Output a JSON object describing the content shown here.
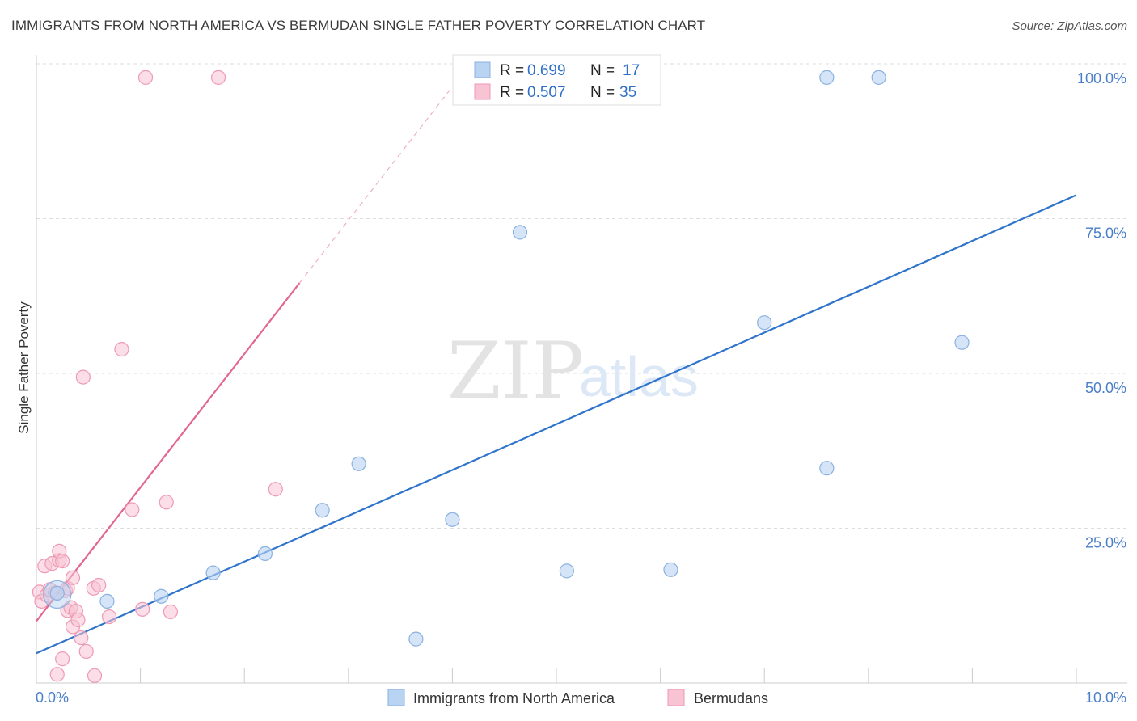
{
  "header": {
    "title": "IMMIGRANTS FROM NORTH AMERICA VS BERMUDAN SINGLE FATHER POVERTY CORRELATION CHART",
    "source": "Source: ZipAtlas.com"
  },
  "watermark": {
    "zip": "ZIP",
    "atlas": "atlas"
  },
  "colors": {
    "blue_fill": "#b9d3f2",
    "blue_stroke": "#8ab1e2",
    "blue_line": "#2f74cc",
    "pink_fill": "#f8c3d3",
    "pink_stroke": "#ee9ab5",
    "pink_line": "#e2668f",
    "grid": "#dddddd",
    "axis_label": "#4a7fc9"
  },
  "chart_data": {
    "type": "scatter",
    "title": "IMMIGRANTS FROM NORTH AMERICA VS BERMUDAN SINGLE FATHER POVERTY CORRELATION CHART",
    "xlabel": "",
    "ylabel": "Single Father Poverty",
    "xlim": [
      0,
      10
    ],
    "ylim": [
      0,
      100
    ],
    "x_tick_labels": [
      "0.0%",
      "10.0%"
    ],
    "y_ticks": [
      25,
      50,
      75,
      100
    ],
    "y_tick_labels": [
      "25.0%",
      "50.0%",
      "75.0%",
      "100.0%"
    ],
    "grid": true,
    "legend_position": "top-center",
    "series": [
      {
        "name": "Immigrants from North America",
        "color": "blue",
        "R": "0.699",
        "N": "17",
        "points": [
          [
            0.2,
            14.5
          ],
          [
            0.68,
            13.2
          ],
          [
            1.2,
            14.0
          ],
          [
            1.7,
            17.8
          ],
          [
            2.2,
            20.9
          ],
          [
            2.75,
            27.9
          ],
          [
            3.1,
            35.4
          ],
          [
            3.65,
            7.1
          ],
          [
            4.0,
            26.4
          ],
          [
            4.65,
            72.8
          ],
          [
            5.1,
            18.1
          ],
          [
            6.1,
            18.3
          ],
          [
            7.0,
            58.2
          ],
          [
            7.6,
            34.7
          ],
          [
            7.6,
            97.8
          ],
          [
            8.1,
            97.8
          ],
          [
            8.9,
            55.0
          ]
        ],
        "trend": {
          "x": [
            0,
            10
          ],
          "y": [
            4.8,
            78.8
          ]
        }
      },
      {
        "name": "Bermudans",
        "color": "pink",
        "R": "0.507",
        "N": "35",
        "points": [
          [
            0.03,
            14.7
          ],
          [
            0.05,
            13.2
          ],
          [
            0.08,
            18.9
          ],
          [
            0.1,
            14.2
          ],
          [
            0.13,
            15.1
          ],
          [
            0.15,
            19.3
          ],
          [
            0.18,
            14.6
          ],
          [
            0.2,
            1.4
          ],
          [
            0.22,
            19.8
          ],
          [
            0.22,
            21.3
          ],
          [
            0.25,
            3.9
          ],
          [
            0.25,
            19.7
          ],
          [
            0.28,
            14.9
          ],
          [
            0.3,
            11.7
          ],
          [
            0.3,
            15.3
          ],
          [
            0.33,
            12.2
          ],
          [
            0.35,
            17.0
          ],
          [
            0.35,
            9.1
          ],
          [
            0.38,
            11.6
          ],
          [
            0.4,
            10.2
          ],
          [
            0.43,
            7.3
          ],
          [
            0.45,
            49.4
          ],
          [
            0.48,
            5.1
          ],
          [
            0.55,
            15.3
          ],
          [
            0.56,
            1.2
          ],
          [
            0.6,
            15.8
          ],
          [
            0.7,
            10.7
          ],
          [
            0.82,
            53.9
          ],
          [
            0.92,
            28.0
          ],
          [
            1.02,
            11.9
          ],
          [
            1.05,
            97.8
          ],
          [
            1.25,
            29.2
          ],
          [
            1.29,
            11.5
          ],
          [
            1.75,
            97.8
          ],
          [
            2.3,
            31.3
          ]
        ],
        "trend": {
          "x": [
            0,
            2.53
          ],
          "y": [
            10.0,
            64.6
          ]
        },
        "trend_extension": {
          "x": [
            2.53,
            4.0
          ],
          "y": [
            64.6,
            96.3
          ]
        }
      }
    ]
  }
}
